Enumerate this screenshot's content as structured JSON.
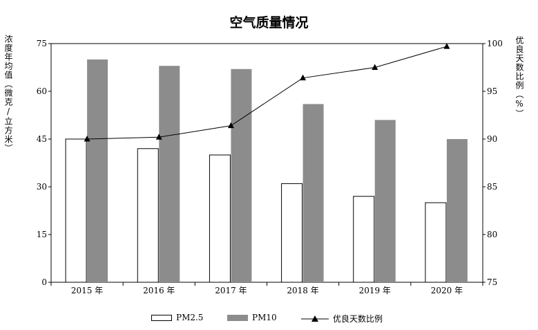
{
  "title": "空气质量情况",
  "left_axis_label": "浓度年均值（微克/立方米）",
  "right_axis_label": "优良天数比例（%）",
  "legend": {
    "pm25": "PM2.5",
    "pm10": "PM10",
    "ratio": "优良天数比例"
  },
  "colors": {
    "pm25_fill": "#ffffff",
    "pm10_fill": "#8c8c8c",
    "line": "#000000"
  },
  "chart_data": {
    "type": "bar",
    "title": "空气质量情况",
    "categories": [
      "2015 年",
      "2016 年",
      "2017 年",
      "2018 年",
      "2019 年",
      "2020 年"
    ],
    "series": [
      {
        "name": "PM2.5",
        "axis": "left",
        "type": "bar",
        "values": [
          45,
          42,
          40,
          31,
          27,
          25
        ]
      },
      {
        "name": "PM10",
        "axis": "left",
        "type": "bar",
        "values": [
          70,
          68,
          67,
          56,
          51,
          45
        ]
      },
      {
        "name": "优良天数比例",
        "axis": "right",
        "type": "line",
        "marker": "triangle",
        "values": [
          90.0,
          90.2,
          91.4,
          96.4,
          97.5,
          99.7
        ]
      }
    ],
    "ylabel": "浓度年均值（微克/立方米）",
    "ylim": [
      0,
      75
    ],
    "yticks": [
      0,
      15,
      30,
      45,
      60,
      75
    ],
    "y2label": "优良天数比例（%）",
    "y2lim": [
      75,
      100
    ],
    "y2ticks": [
      75,
      80,
      85,
      90,
      95,
      100
    ],
    "legend_position": "bottom",
    "grid": false
  }
}
